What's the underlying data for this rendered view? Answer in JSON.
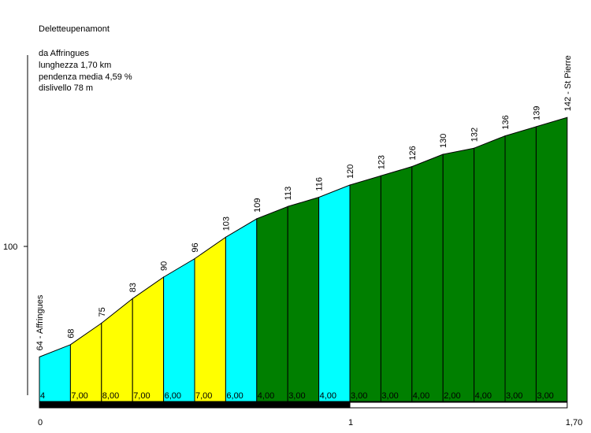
{
  "title": "Deletteupenamont",
  "info_lines": [
    "da Affringues",
    "lunghezza 1,70 km",
    "pendenza media 4,59 %",
    "dislivello 78 m"
  ],
  "chart_data": {
    "type": "area",
    "x_unit": "km",
    "y_unit": "m",
    "ylim": [
      40,
      150
    ],
    "y_ticks": [
      {
        "value": 100,
        "label": "100"
      }
    ],
    "x_ticks": [
      {
        "value": 0,
        "label": "0"
      },
      {
        "value": 1,
        "label": "1"
      },
      {
        "value": 1.7,
        "label": "1,70"
      }
    ],
    "points": [
      {
        "x": 0.0,
        "y": 64,
        "label": "64 - Affringues"
      },
      {
        "x": 0.1,
        "y": 68,
        "label": "68"
      },
      {
        "x": 0.2,
        "y": 75,
        "label": "75"
      },
      {
        "x": 0.3,
        "y": 83,
        "label": "83"
      },
      {
        "x": 0.4,
        "y": 90,
        "label": "90"
      },
      {
        "x": 0.5,
        "y": 96,
        "label": "96"
      },
      {
        "x": 0.6,
        "y": 103,
        "label": "103"
      },
      {
        "x": 0.7,
        "y": 109,
        "label": "109"
      },
      {
        "x": 0.8,
        "y": 113,
        "label": "113"
      },
      {
        "x": 0.9,
        "y": 116,
        "label": "116"
      },
      {
        "x": 1.0,
        "y": 120,
        "label": "120"
      },
      {
        "x": 1.1,
        "y": 123,
        "label": "123"
      },
      {
        "x": 1.2,
        "y": 126,
        "label": "126"
      },
      {
        "x": 1.3,
        "y": 130,
        "label": "130"
      },
      {
        "x": 1.4,
        "y": 132,
        "label": "132"
      },
      {
        "x": 1.5,
        "y": 136,
        "label": "136"
      },
      {
        "x": 1.6,
        "y": 139,
        "label": "139"
      },
      {
        "x": 1.7,
        "y": 142,
        "label": "142 - St Pierre"
      }
    ],
    "segments": [
      {
        "grade": "4",
        "color": "#00ffff"
      },
      {
        "grade": "7,00",
        "color": "#ffff00"
      },
      {
        "grade": "8,00",
        "color": "#ffff00"
      },
      {
        "grade": "7,00",
        "color": "#ffff00"
      },
      {
        "grade": "6,00",
        "color": "#00ffff"
      },
      {
        "grade": "7,00",
        "color": "#ffff00"
      },
      {
        "grade": "6,00",
        "color": "#00ffff"
      },
      {
        "grade": "4,00",
        "color": "#007f00"
      },
      {
        "grade": "3,00",
        "color": "#007f00"
      },
      {
        "grade": "4,00",
        "color": "#00ffff"
      },
      {
        "grade": "3,00",
        "color": "#007f00"
      },
      {
        "grade": "3,00",
        "color": "#007f00"
      },
      {
        "grade": "4,00",
        "color": "#007f00"
      },
      {
        "grade": "2,00",
        "color": "#007f00"
      },
      {
        "grade": "4,00",
        "color": "#007f00"
      },
      {
        "grade": "3,00",
        "color": "#007f00"
      },
      {
        "grade": "3,00",
        "color": "#007f00"
      }
    ],
    "colors": {
      "axis": "#000000",
      "km_bar": "#000000",
      "outline": "#000000"
    }
  }
}
